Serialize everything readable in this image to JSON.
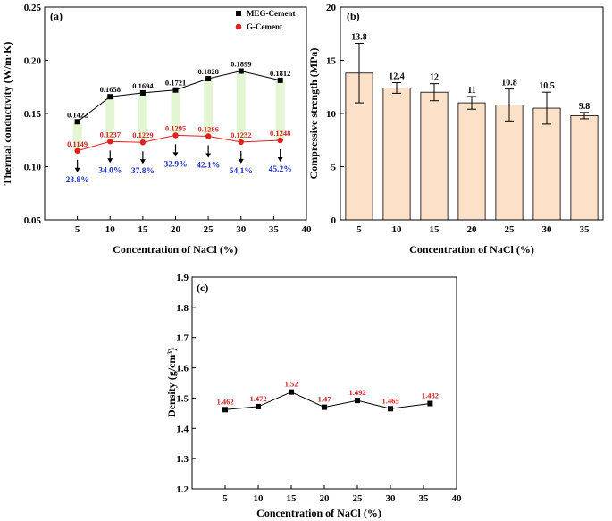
{
  "chart_data": [
    {
      "panel": "(a)",
      "type": "line",
      "xlabel": "Concentration of NaCl (%)",
      "ylabel": "Thermal conductivity (W/m·K)",
      "xlim": [
        0,
        40
      ],
      "ylim": [
        0.05,
        0.25
      ],
      "xticks": [
        5,
        10,
        15,
        20,
        25,
        30,
        35,
        40
      ],
      "yticks": [
        0.05,
        0.1,
        0.15,
        0.2,
        0.25
      ],
      "x": [
        5,
        10,
        15,
        20,
        25,
        30,
        36
      ],
      "series": [
        {
          "name": "MEG-Cement",
          "color": "#000000",
          "marker": "square",
          "values": [
            0.1422,
            0.1658,
            0.1694,
            0.1721,
            0.1828,
            0.1899,
            0.1812
          ],
          "labels": [
            "0.1422",
            "0.1658",
            "0.1694",
            "0.1721",
            "0.1828",
            "0.1899",
            "0.1812"
          ]
        },
        {
          "name": "G-Cement",
          "color": "#e02020",
          "marker": "circle",
          "values": [
            0.1149,
            0.1237,
            0.1229,
            0.1295,
            0.1286,
            0.1232,
            0.1248
          ],
          "labels": [
            "0.1149",
            "0.1237",
            "0.1229",
            "0.1295",
            "0.1286",
            "0.1232",
            "0.1248"
          ]
        }
      ],
      "reduction_percent": [
        "23.8%",
        "34.0%",
        "37.8%",
        "32.9%",
        "42.1%",
        "54.1%",
        "45.2%"
      ],
      "band_color": "#e4f5d4",
      "legend": "top-right"
    },
    {
      "panel": "(b)",
      "type": "bar",
      "xlabel": "Concentration of NaCl (%)",
      "ylabel": "Compressive strength (MPa)",
      "categories": [
        "5",
        "10",
        "15",
        "20",
        "25",
        "30",
        "35"
      ],
      "values": [
        13.8,
        12.4,
        12,
        11,
        10.8,
        10.5,
        9.8
      ],
      "labels": [
        "13.8",
        "12.4",
        "12",
        "11",
        "10.8",
        "10.5",
        "9.8"
      ],
      "errors": [
        2.8,
        0.5,
        0.8,
        0.6,
        1.5,
        1.5,
        0.3
      ],
      "ylim": [
        0,
        20
      ],
      "yticks": [
        0,
        5,
        10,
        15,
        20
      ],
      "bar_color": "#fde0c8",
      "edge_color": "#000000"
    },
    {
      "panel": "(c)",
      "type": "line",
      "xlabel": "Concentration of NaCl (%)",
      "ylabel": "Density (g/cm³)",
      "xlim": [
        0,
        40
      ],
      "ylim": [
        1.2,
        1.9
      ],
      "xticks": [
        5,
        10,
        15,
        20,
        25,
        30,
        35,
        40
      ],
      "yticks": [
        1.2,
        1.3,
        1.4,
        1.5,
        1.6,
        1.7,
        1.8,
        1.9
      ],
      "x": [
        5,
        10,
        15,
        20,
        25,
        30,
        36
      ],
      "values": [
        1.462,
        1.472,
        1.52,
        1.47,
        1.492,
        1.465,
        1.482
      ],
      "labels": [
        "1.462",
        "1.472",
        "1.52",
        "1.47",
        "1.492",
        "1.465",
        "1.482"
      ],
      "color": "#000000",
      "label_color": "#d32020"
    }
  ]
}
